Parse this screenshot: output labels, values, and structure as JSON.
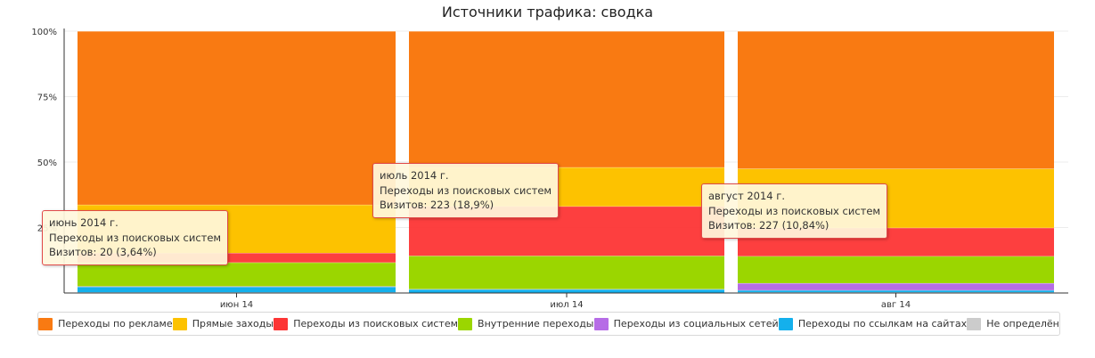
{
  "title": "Источники трафика: сводка",
  "chart_data": {
    "type": "bar",
    "stacked": "percent",
    "categories": [
      "июн 14",
      "июл 14",
      "авг 14"
    ],
    "y_ticks": [
      "100%",
      "75%",
      "50%",
      "25%"
    ],
    "ylim": [
      0,
      100
    ],
    "series": [
      {
        "name": "Переходы по рекламе",
        "color": "#f97a12",
        "values": [
          66.3,
          52.0,
          52.5
        ]
      },
      {
        "name": "Прямые заходы",
        "color": "#fdc200",
        "values": [
          18.4,
          14.9,
          22.6
        ]
      },
      {
        "name": "Переходы из поисковых систем",
        "color": "#fd3535",
        "values": [
          3.64,
          18.9,
          10.84
        ]
      },
      {
        "name": "Внутренние переходы",
        "color": "#9bd600",
        "values": [
          9.1,
          12.7,
          10.3
        ]
      },
      {
        "name": "Переходы из социальных сетей",
        "color": "#b66ce6",
        "values": [
          0.2,
          0.1,
          2.7
        ]
      },
      {
        "name": "Переходы по ссылкам на сайтах",
        "color": "#14b0ec",
        "values": [
          2.1,
          1.3,
          0.8
        ]
      },
      {
        "name": "Не определён",
        "color": "#cccccc",
        "values": [
          0.26,
          0.1,
          0.26
        ]
      }
    ],
    "highlight_series": 2,
    "tooltips": [
      {
        "line1": "июнь 2014 г.",
        "line2": "Переходы из поисковых систем",
        "line3": "Визитов: 20 (3,64%)"
      },
      {
        "line1": "июль 2014 г.",
        "line2": "Переходы из поисковых систем",
        "line3": "Визитов: 223 (18,9%)"
      },
      {
        "line1": "август 2014 г.",
        "line2": "Переходы из поисковых систем",
        "line3": "Визитов: 227 (10,84%)"
      }
    ],
    "legend_position": "bottom"
  }
}
